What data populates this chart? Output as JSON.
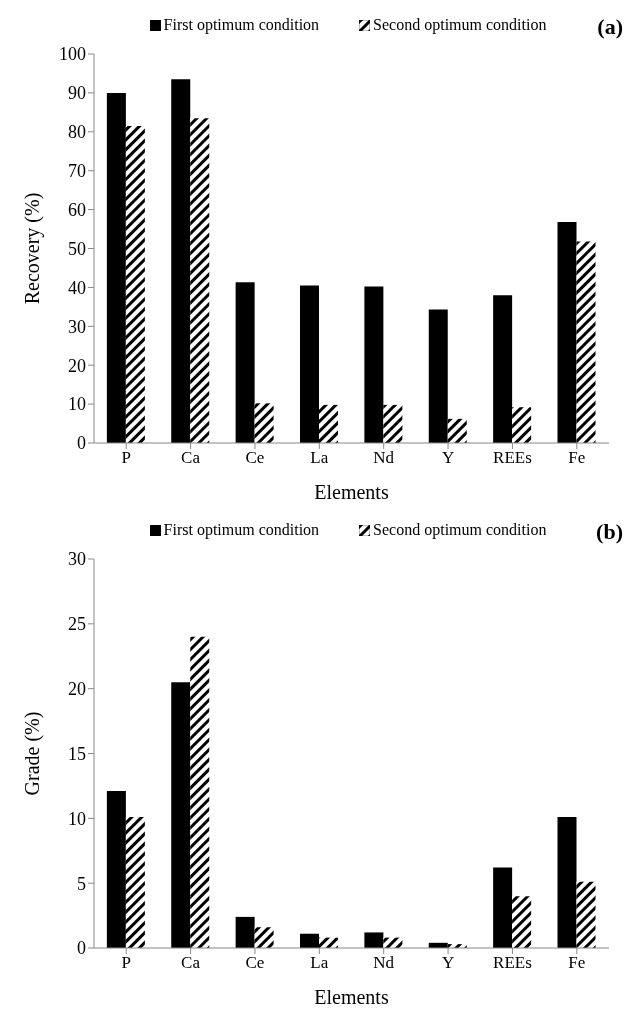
{
  "chart_data": [
    {
      "type": "bar",
      "title": "(a)",
      "xlabel": "Elements",
      "ylabel": "Recovery  (%)",
      "categories": [
        "P",
        "Ca",
        "Ce",
        "La",
        "Nd",
        "Y",
        "REEs",
        "Fe"
      ],
      "series": [
        {
          "name": "First optimum condition",
          "color": "#000000",
          "values": [
            90,
            93.5,
            41.3,
            40.5,
            40.2,
            34.3,
            38,
            56.8
          ]
        },
        {
          "name": "Second optimum condition",
          "color": "#000000",
          "values": [
            81.5,
            83.5,
            10.2,
            9.8,
            9.8,
            6.2,
            9.2,
            51.8
          ]
        }
      ],
      "ylim": [
        0,
        100
      ],
      "yticks": [
        0,
        10,
        20,
        30,
        40,
        50,
        60,
        70,
        80,
        90,
        100
      ],
      "grid": false,
      "legend": "top"
    },
    {
      "type": "bar",
      "title": "(b)",
      "xlabel": "Elements",
      "ylabel": "Grade (%)",
      "categories": [
        "P",
        "Ca",
        "Ce",
        "La",
        "Nd",
        "Y",
        "REEs",
        "Fe"
      ],
      "series": [
        {
          "name": "First optimum condition",
          "color": "#000000",
          "values": [
            12.1,
            20.5,
            2.4,
            1.1,
            1.2,
            0.4,
            6.2,
            10.1
          ]
        },
        {
          "name": "Second optimum condition",
          "color": "#000000",
          "values": [
            10.1,
            24,
            1.6,
            0.8,
            0.8,
            0.3,
            4.0,
            5.1
          ]
        }
      ],
      "ylim": [
        0,
        30
      ],
      "yticks": [
        0,
        5,
        10,
        15,
        20,
        25,
        30
      ],
      "grid": false,
      "legend": "top"
    }
  ]
}
